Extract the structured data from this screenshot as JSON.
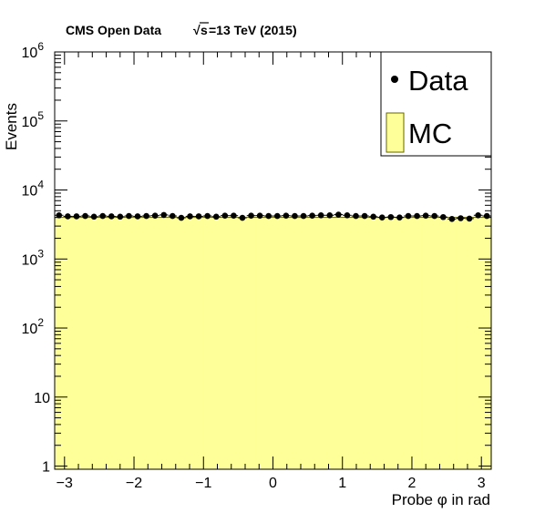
{
  "header": {
    "experiment": "CMS Open Data",
    "energy_sqrt": "√",
    "energy_s": "s",
    "energy_rest": "=13 TeV (2015)"
  },
  "legend": {
    "data_label": "Data",
    "mc_label": "MC"
  },
  "colors": {
    "mc_fill": "#ffff99",
    "mc_edge": "#666600",
    "data_marker": "#000000"
  },
  "chart_data": {
    "type": "bar",
    "y_scale": "log",
    "xlabel": "Probe φ in rad",
    "ylabel": "Events",
    "xlim": [
      -3.1416,
      3.1416
    ],
    "ylim": [
      0.9,
      1000000
    ],
    "x_ticks": [
      -3,
      -2,
      -1,
      0,
      1,
      2,
      3
    ],
    "x_tick_labels": [
      "−3",
      "−2",
      "−1",
      "0",
      "1",
      "2",
      "3"
    ],
    "y_tick_labels": [
      {
        "value": 1,
        "base": "1",
        "exp": ""
      },
      {
        "value": 10,
        "base": "10",
        "exp": ""
      },
      {
        "value": 100,
        "base": "10",
        "exp": "2"
      },
      {
        "value": 1000,
        "base": "10",
        "exp": "3"
      },
      {
        "value": 10000,
        "base": "10",
        "exp": "4"
      },
      {
        "value": 100000,
        "base": "10",
        "exp": "5"
      },
      {
        "value": 1000000,
        "base": "10",
        "exp": "6"
      }
    ],
    "legend_position": "top-right",
    "mc": {
      "name": "MC",
      "values": [
        4000,
        4000,
        4000,
        4000,
        4000,
        4000,
        4000,
        4000,
        4000,
        4000,
        4000,
        4000,
        4000,
        4000,
        4000,
        4000,
        4000,
        4000,
        4000,
        4000,
        4000,
        4000,
        4000,
        4000,
        4000,
        4000,
        4000,
        4000,
        4000,
        4000,
        4000,
        4000,
        4000,
        4000,
        4000,
        4000,
        4000,
        4000,
        4000,
        4000,
        4000,
        4000,
        4000,
        4000,
        4000,
        4000,
        4000,
        4000,
        4000,
        4000
      ]
    },
    "data": {
      "name": "Data",
      "values": [
        4300,
        4150,
        4150,
        4200,
        4100,
        4200,
        4150,
        4100,
        4200,
        4150,
        4200,
        4250,
        4350,
        4200,
        3950,
        4150,
        4150,
        4200,
        4100,
        4250,
        4250,
        3950,
        4250,
        4250,
        4200,
        4200,
        4250,
        4200,
        4200,
        4250,
        4300,
        4300,
        4400,
        4300,
        4200,
        4200,
        4100,
        4000,
        4050,
        4000,
        4200,
        4200,
        4250,
        4200,
        4050,
        3800,
        3900,
        3850,
        4300,
        4200
      ]
    }
  }
}
